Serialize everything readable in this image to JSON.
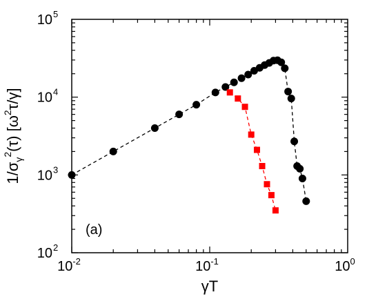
{
  "chart_data": {
    "type": "scatter",
    "xscale": "log",
    "yscale": "log",
    "xlim": [
      0.01,
      1
    ],
    "ylim": [
      100,
      100000
    ],
    "grid": false,
    "xlabel": "γT",
    "ylabel": "1/σ_γ^2(τ) [ω^2τ/γ]",
    "annotation": "(a)",
    "x_ticks": [
      {
        "mantissa": "10",
        "exp": "-2",
        "value": 0.01
      },
      {
        "mantissa": "10",
        "exp": "-1",
        "value": 0.1
      },
      {
        "mantissa": "10",
        "exp": "0",
        "value": 1
      }
    ],
    "y_ticks": [
      {
        "mantissa": "10",
        "exp": "2",
        "value": 100
      },
      {
        "mantissa": "10",
        "exp": "3",
        "value": 1000
      },
      {
        "mantissa": "10",
        "exp": "4",
        "value": 10000
      },
      {
        "mantissa": "10",
        "exp": "5",
        "value": 100000
      }
    ],
    "series": [
      {
        "marker": "circle",
        "color": "#000000",
        "line_style": "dashed",
        "points": [
          [
            0.01,
            1000
          ],
          [
            0.02,
            2000
          ],
          [
            0.04,
            4000
          ],
          [
            0.06,
            6000
          ],
          [
            0.08,
            8000
          ],
          [
            0.11,
            11500
          ],
          [
            0.13,
            13500
          ],
          [
            0.15,
            15500
          ],
          [
            0.17,
            17500
          ],
          [
            0.19,
            19500
          ],
          [
            0.21,
            21800
          ],
          [
            0.23,
            23800
          ],
          [
            0.25,
            25800
          ],
          [
            0.27,
            27500
          ],
          [
            0.29,
            29500
          ],
          [
            0.31,
            29800
          ],
          [
            0.33,
            28000
          ],
          [
            0.35,
            23500
          ],
          [
            0.37,
            11800
          ],
          [
            0.39,
            9600
          ],
          [
            0.41,
            2700
          ],
          [
            0.43,
            1300
          ],
          [
            0.45,
            1200
          ],
          [
            0.47,
            900
          ],
          [
            0.5,
            460
          ]
        ]
      },
      {
        "marker": "square",
        "color": "#ff0000",
        "line_style": "dashed",
        "points": [
          [
            0.14,
            11500
          ],
          [
            0.16,
            9600
          ],
          [
            0.18,
            7500
          ],
          [
            0.2,
            3300
          ],
          [
            0.22,
            2100
          ],
          [
            0.24,
            1300
          ],
          [
            0.26,
            760
          ],
          [
            0.28,
            550
          ],
          [
            0.3,
            350
          ]
        ]
      }
    ]
  }
}
